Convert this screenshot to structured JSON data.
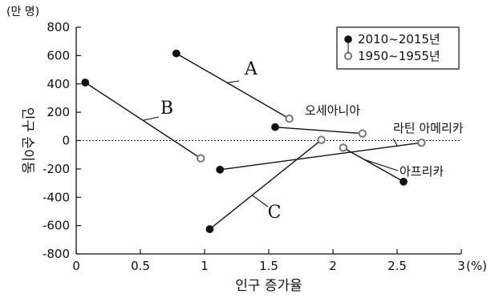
{
  "chart_data": {
    "type": "scatter",
    "unit_label": "(만 명)",
    "xlabel": "인구 증가율",
    "ylabel": "인구 순이동",
    "x_unit": "(%)",
    "xlim": [
      0,
      3
    ],
    "ylim": [
      -800,
      800
    ],
    "x_ticks": [
      {
        "value": 0,
        "label": "0"
      },
      {
        "value": 0.5,
        "label": "0.5"
      },
      {
        "value": 1,
        "label": "1"
      },
      {
        "value": 1.5,
        "label": "1.5"
      },
      {
        "value": 2,
        "label": "2"
      },
      {
        "value": 2.5,
        "label": "2.5"
      },
      {
        "value": 3,
        "label": "3"
      }
    ],
    "y_ticks": [
      {
        "value": 800,
        "label": "800"
      },
      {
        "value": 600,
        "label": "600"
      },
      {
        "value": 400,
        "label": "400"
      },
      {
        "value": 200,
        "label": "200"
      },
      {
        "value": 0,
        "label": "0"
      },
      {
        "value": -200,
        "label": "-200"
      },
      {
        "value": -400,
        "label": "-400"
      },
      {
        "value": -600,
        "label": "-600"
      },
      {
        "value": -800,
        "label": "-800"
      }
    ],
    "legend": {
      "position": "top-right",
      "entries": [
        {
          "marker": "filled",
          "label": "2010~2015년"
        },
        {
          "marker": "open",
          "label": "1950~1955년"
        }
      ]
    },
    "regions": [
      {
        "name": "A",
        "p2010": [
          0.78,
          615
        ],
        "p1950": [
          1.66,
          155
        ]
      },
      {
        "name": "B",
        "p2010": [
          0.07,
          410
        ],
        "p1950": [
          0.97,
          -125
        ]
      },
      {
        "name": "C",
        "p2010": [
          1.04,
          -625
        ],
        "p1950": [
          1.91,
          5
        ]
      },
      {
        "name": "오세아니아",
        "p2010": [
          1.55,
          95
        ],
        "p1950": [
          2.23,
          50
        ]
      },
      {
        "name": "라틴 아메리카",
        "p2010": [
          1.12,
          -205
        ],
        "p1950": [
          2.69,
          -15
        ]
      },
      {
        "name": "아프리카",
        "p2010": [
          2.55,
          -290
        ],
        "p1950": [
          2.08,
          -50
        ]
      }
    ],
    "zero_line": "dotted"
  }
}
